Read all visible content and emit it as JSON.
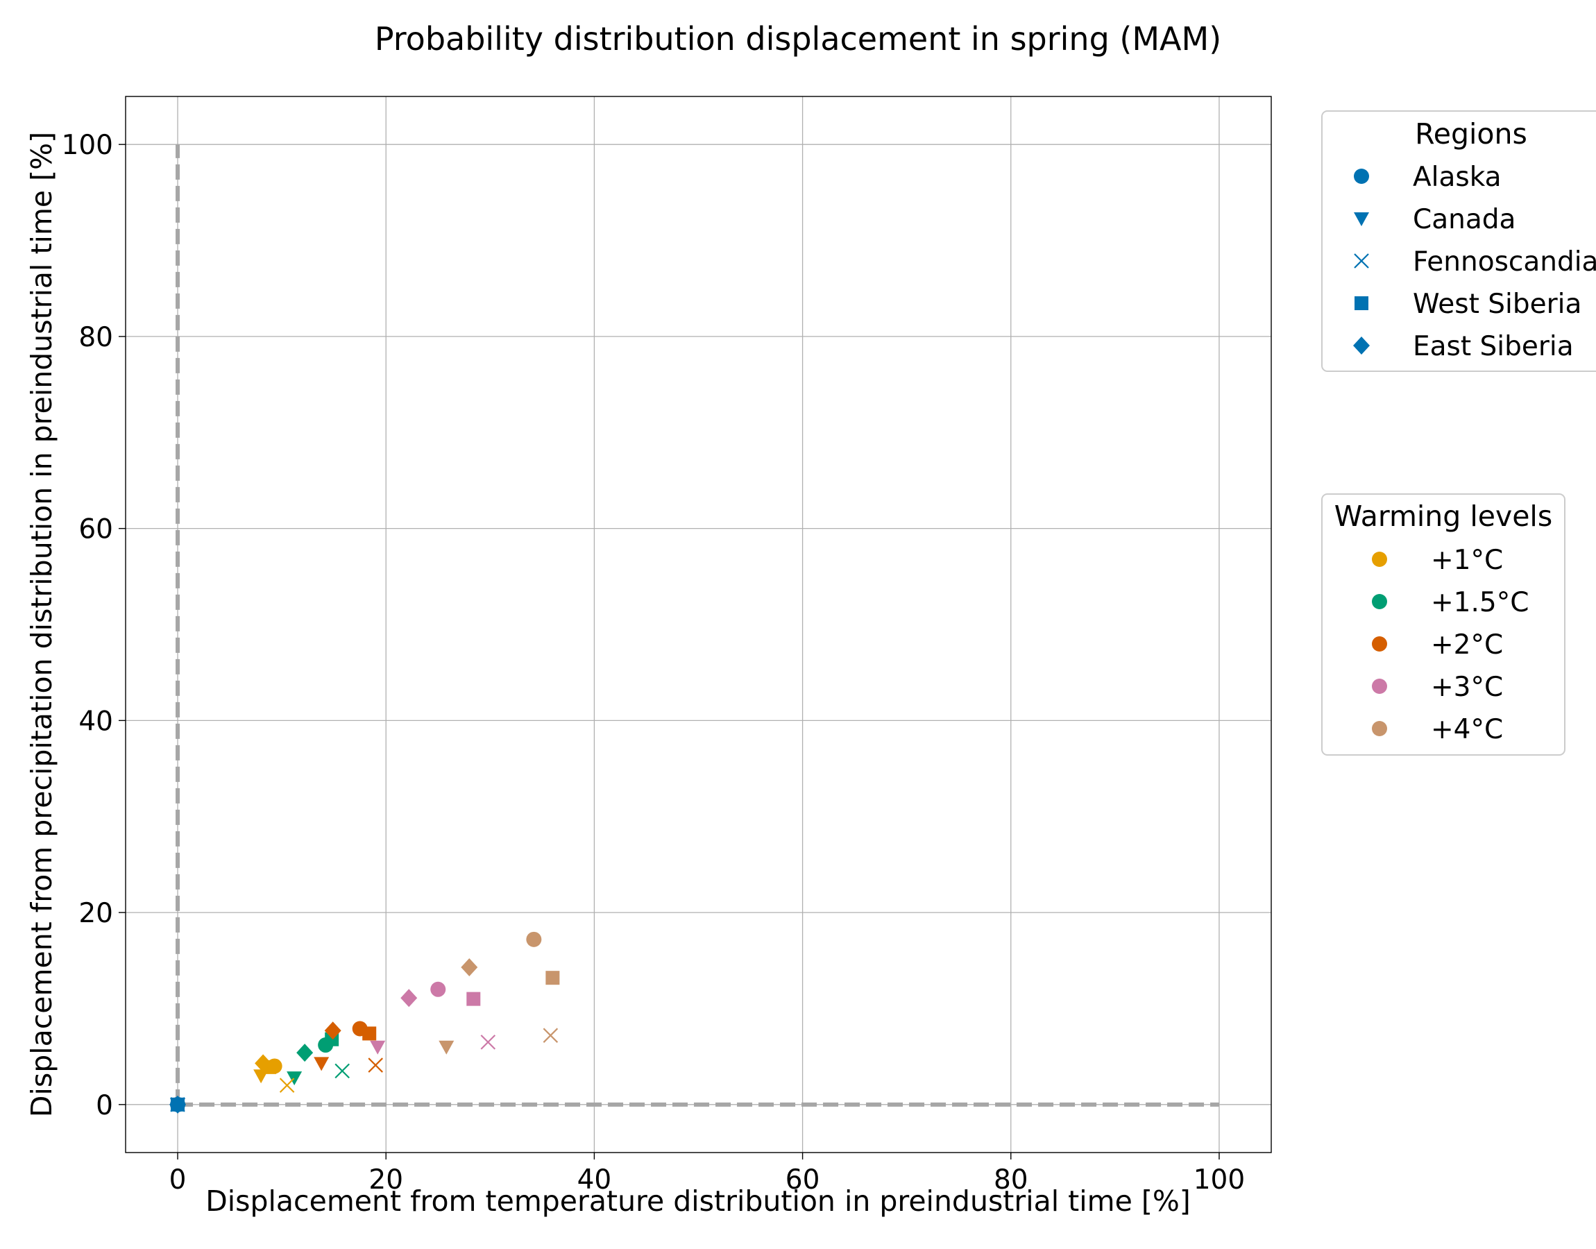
{
  "chart_data": {
    "type": "scatter",
    "title": "Probability distribution displacement in spring (MAM)",
    "xlabel": "Displacement from temperature distribution in preindustrial time [%]",
    "ylabel": "Displacement from precipitation distribution in preindustrial time [%]",
    "xlim": [
      -5,
      105
    ],
    "ylim": [
      -5,
      105
    ],
    "xticks": [
      0,
      20,
      40,
      60,
      80,
      100
    ],
    "yticks": [
      0,
      20,
      40,
      60,
      80,
      100
    ],
    "grid": true,
    "reference_lines": [
      {
        "style": "dashed",
        "color": "#a6a6a6",
        "points": [
          [
            0,
            0
          ],
          [
            100,
            0
          ]
        ]
      },
      {
        "style": "dashed",
        "color": "#a6a6a6",
        "points": [
          [
            0,
            0
          ],
          [
            0,
            100
          ]
        ]
      }
    ],
    "legend_regions": {
      "title": "Regions",
      "placement": "upper-right-outside",
      "entries": [
        {
          "label": "Alaska",
          "marker": "circle"
        },
        {
          "label": "Canada",
          "marker": "triangle-down"
        },
        {
          "label": "Fennoscandia",
          "marker": "x"
        },
        {
          "label": "West Siberia",
          "marker": "square"
        },
        {
          "label": "East Siberia",
          "marker": "diamond"
        }
      ],
      "marker_color": "#0072b2"
    },
    "legend_warming": {
      "title": "Warming levels",
      "placement": "middle-right-outside",
      "entries": [
        {
          "label": "+1°C",
          "color": "#e69f00"
        },
        {
          "label": "+1.5°C",
          "color": "#009e73"
        },
        {
          "label": "+2°C",
          "color": "#d55e00"
        },
        {
          "label": "+3°C",
          "color": "#cc79a7"
        },
        {
          "label": "+4°C",
          "color": "#c8956c"
        }
      ]
    },
    "series": [
      {
        "name": "Alaska",
        "marker": "circle",
        "points": [
          {
            "x": 0,
            "y": 0,
            "color": "#0072b2"
          },
          {
            "x": 9.3,
            "y": 4.0,
            "color": "#e69f00"
          },
          {
            "x": 14.2,
            "y": 6.2,
            "color": "#009e73"
          },
          {
            "x": 17.5,
            "y": 7.9,
            "color": "#d55e00"
          },
          {
            "x": 25.0,
            "y": 12.0,
            "color": "#cc79a7"
          },
          {
            "x": 34.2,
            "y": 17.2,
            "color": "#c8956c"
          }
        ]
      },
      {
        "name": "Canada",
        "marker": "triangle-down",
        "points": [
          {
            "x": 0,
            "y": 0,
            "color": "#0072b2"
          },
          {
            "x": 8.0,
            "y": 3.0,
            "color": "#e69f00"
          },
          {
            "x": 11.2,
            "y": 2.8,
            "color": "#009e73"
          },
          {
            "x": 13.8,
            "y": 4.3,
            "color": "#d55e00"
          },
          {
            "x": 19.2,
            "y": 6.0,
            "color": "#cc79a7"
          },
          {
            "x": 25.8,
            "y": 6.0,
            "color": "#c8956c"
          }
        ]
      },
      {
        "name": "Fennoscandia",
        "marker": "x",
        "points": [
          {
            "x": 0,
            "y": 0,
            "color": "#0072b2"
          },
          {
            "x": 10.5,
            "y": 2.0,
            "color": "#e69f00"
          },
          {
            "x": 15.8,
            "y": 3.5,
            "color": "#009e73"
          },
          {
            "x": 19.0,
            "y": 4.1,
            "color": "#d55e00"
          },
          {
            "x": 29.8,
            "y": 6.5,
            "color": "#cc79a7"
          },
          {
            "x": 35.8,
            "y": 7.2,
            "color": "#c8956c"
          }
        ]
      },
      {
        "name": "West Siberia",
        "marker": "square",
        "points": [
          {
            "x": 0,
            "y": 0,
            "color": "#0072b2"
          },
          {
            "x": 8.8,
            "y": 3.9,
            "color": "#e69f00"
          },
          {
            "x": 14.8,
            "y": 6.8,
            "color": "#009e73"
          },
          {
            "x": 18.4,
            "y": 7.4,
            "color": "#d55e00"
          },
          {
            "x": 28.4,
            "y": 11.0,
            "color": "#cc79a7"
          },
          {
            "x": 36.0,
            "y": 13.2,
            "color": "#c8956c"
          }
        ]
      },
      {
        "name": "East Siberia",
        "marker": "diamond",
        "points": [
          {
            "x": 0,
            "y": 0,
            "color": "#0072b2"
          },
          {
            "x": 8.2,
            "y": 4.3,
            "color": "#e69f00"
          },
          {
            "x": 12.2,
            "y": 5.4,
            "color": "#009e73"
          },
          {
            "x": 14.9,
            "y": 7.7,
            "color": "#d55e00"
          },
          {
            "x": 22.2,
            "y": 11.1,
            "color": "#cc79a7"
          },
          {
            "x": 28.0,
            "y": 14.3,
            "color": "#c8956c"
          }
        ]
      }
    ]
  }
}
